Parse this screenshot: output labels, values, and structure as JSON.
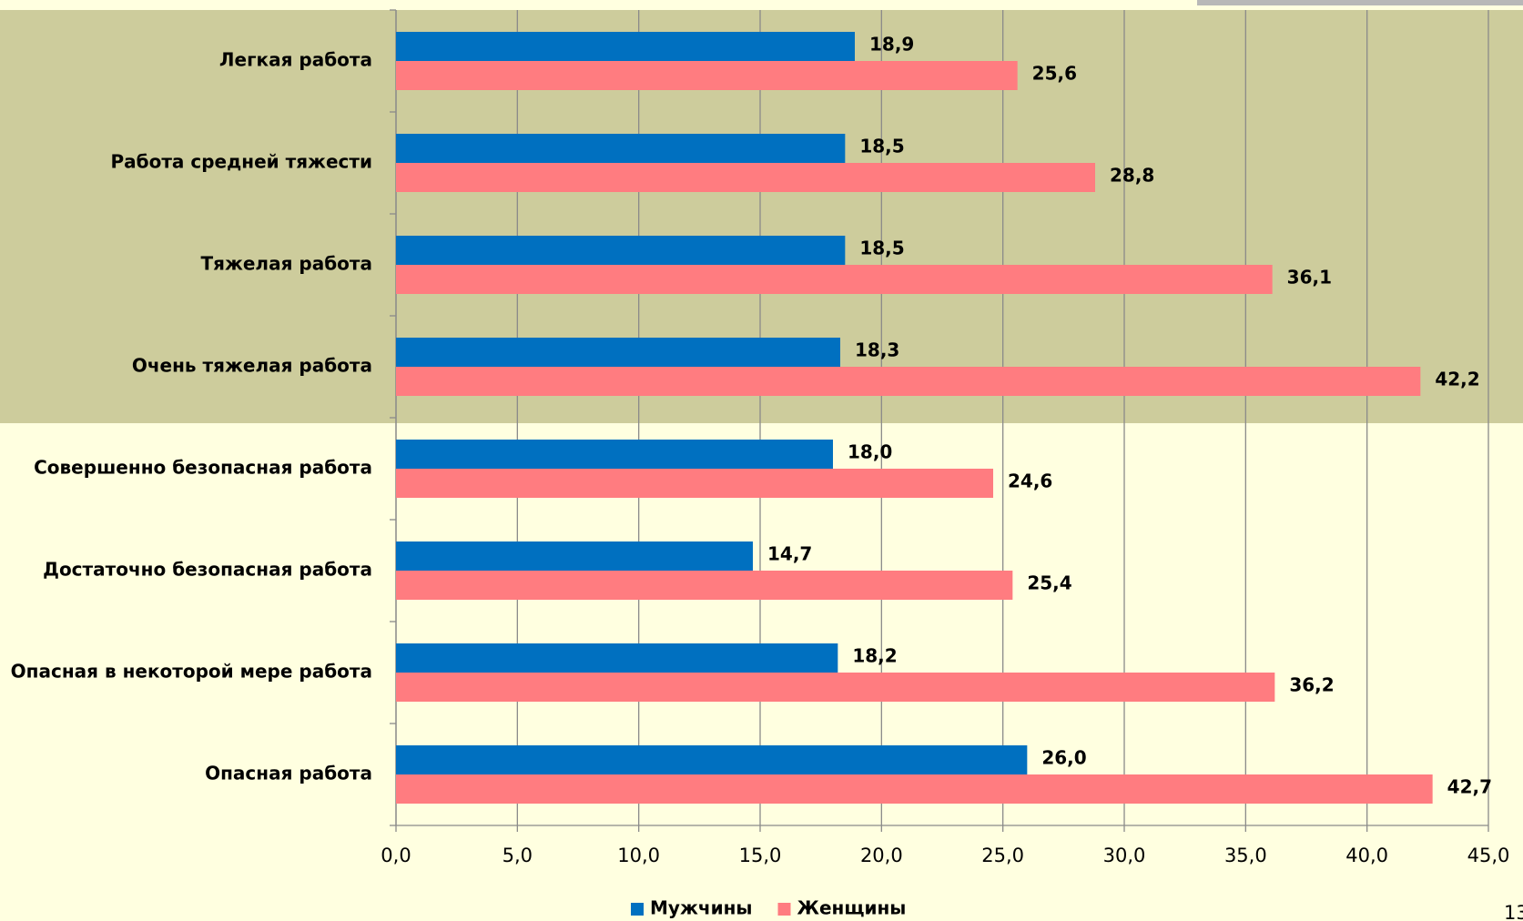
{
  "chart_data": {
    "type": "bar",
    "orientation": "horizontal",
    "categories": [
      "Легкая работа",
      "Работа средней тяжести",
      "Тяжелая работа",
      "Очень тяжелая работа",
      "Совершенно безопасная работа",
      "Достаточно безопасная работа",
      "Опасная в некоторой мере работа",
      "Опасная работа"
    ],
    "series": [
      {
        "name": "Мужчины",
        "color": "#0070c0",
        "values": [
          18.9,
          18.5,
          18.5,
          18.3,
          18.0,
          14.7,
          18.2,
          26.0
        ],
        "value_labels": [
          "18,9",
          "18,5",
          "18,5",
          "18,3",
          "18,0",
          "14,7",
          "18,2",
          "26,0"
        ]
      },
      {
        "name": "Женщины",
        "color": "#ff7c80",
        "values": [
          25.6,
          28.8,
          36.1,
          42.2,
          24.6,
          25.4,
          36.2,
          42.7
        ],
        "value_labels": [
          "25,6",
          "28,8",
          "36,1",
          "42,2",
          "24,6",
          "25,4",
          "36,2",
          "42,7"
        ]
      }
    ],
    "xlim": [
      0,
      45
    ],
    "xticks": [
      {
        "value": 0,
        "label": "0,0"
      },
      {
        "value": 5,
        "label": "5,0"
      },
      {
        "value": 10,
        "label": "10,0"
      },
      {
        "value": 15,
        "label": "15,0"
      },
      {
        "value": 20,
        "label": "20,0"
      },
      {
        "value": 25,
        "label": "25,0"
      },
      {
        "value": 30,
        "label": "30,0"
      },
      {
        "value": 35,
        "label": "35,0"
      },
      {
        "value": 40,
        "label": "40,0"
      },
      {
        "value": 45,
        "label": "45,0"
      }
    ],
    "grid": true,
    "legend": "bottom"
  },
  "page_number": "13"
}
